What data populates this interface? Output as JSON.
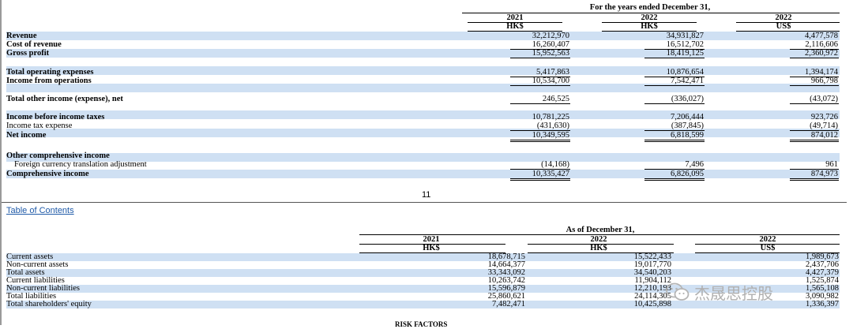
{
  "top": {
    "period_header": "For the years ended December 31,",
    "years": [
      "2021",
      "2022",
      "2022"
    ],
    "currencies": [
      "HK$",
      "HK$",
      "US$"
    ],
    "rows": [
      {
        "label": "Revenue",
        "v": [
          "32,212,970",
          "34,931,827",
          "4,477,578"
        ]
      },
      {
        "label": "Cost of revenue",
        "v": [
          "16,260,407",
          "16,512,702",
          "2,116,606"
        ]
      },
      {
        "label": "Gross profit",
        "v": [
          "15,952,563",
          "18,419,125",
          "2,360,972"
        ]
      },
      {
        "label": "Total operating expenses",
        "v": [
          "5,417,863",
          "10,876,654",
          "1,394,174"
        ]
      },
      {
        "label": "Income from operations",
        "v": [
          "10,534,700",
          "7,542,471",
          "966,798"
        ]
      },
      {
        "label": "Total other income (expense), net",
        "v": [
          "246,525",
          "(336,027)",
          "(43,072)"
        ]
      },
      {
        "label": "Income before income taxes",
        "v": [
          "10,781,225",
          "7,206,444",
          "923,726"
        ]
      },
      {
        "label": "Income tax expense",
        "v": [
          "(431,630)",
          "(387,845)",
          "(49,714)"
        ]
      },
      {
        "label": "Net income",
        "v": [
          "10,349,595",
          "6,818,599",
          "874,012"
        ]
      },
      {
        "label": "Other comprehensive income",
        "v": [
          "",
          "",
          ""
        ]
      },
      {
        "label": "Foreign currency translation adjustment",
        "v": [
          "(14,168)",
          "7,496",
          "961"
        ]
      },
      {
        "label": "Comprehensive income",
        "v": [
          "10,335,427",
          "6,826,095",
          "874,973"
        ]
      }
    ]
  },
  "page_number": "11",
  "toc_link": "Table of Contents",
  "bottom": {
    "period_header": "As of December 31,",
    "years": [
      "2021",
      "2022",
      "2022"
    ],
    "currencies": [
      "HK$",
      "HK$",
      "US$"
    ],
    "rows": [
      {
        "label": "Current assets",
        "v": [
          "18,678,715",
          "15,522,433",
          "1,989,673"
        ]
      },
      {
        "label": "Non-current assets",
        "v": [
          "14,664,377",
          "19,017,770",
          "2,437,706"
        ]
      },
      {
        "label": "Total assets",
        "v": [
          "33,343,092",
          "34,540,203",
          "4,427,379"
        ]
      },
      {
        "label": "Current liabilities",
        "v": [
          "10,263,742",
          "11,904,112",
          "1,525,874"
        ]
      },
      {
        "label": "Non-current liabilities",
        "v": [
          "15,596,879",
          "12,210,193",
          "1,565,108"
        ]
      },
      {
        "label": "Total liabilities",
        "v": [
          "25,860,621",
          "24,114,305",
          "3,090,982"
        ]
      },
      {
        "label": "Total shareholders' equity",
        "v": [
          "7,482,471",
          "10,425,898",
          "1,336,397"
        ]
      }
    ]
  },
  "next_heading": "RISK FACTORS",
  "watermark": "杰晟思控股"
}
